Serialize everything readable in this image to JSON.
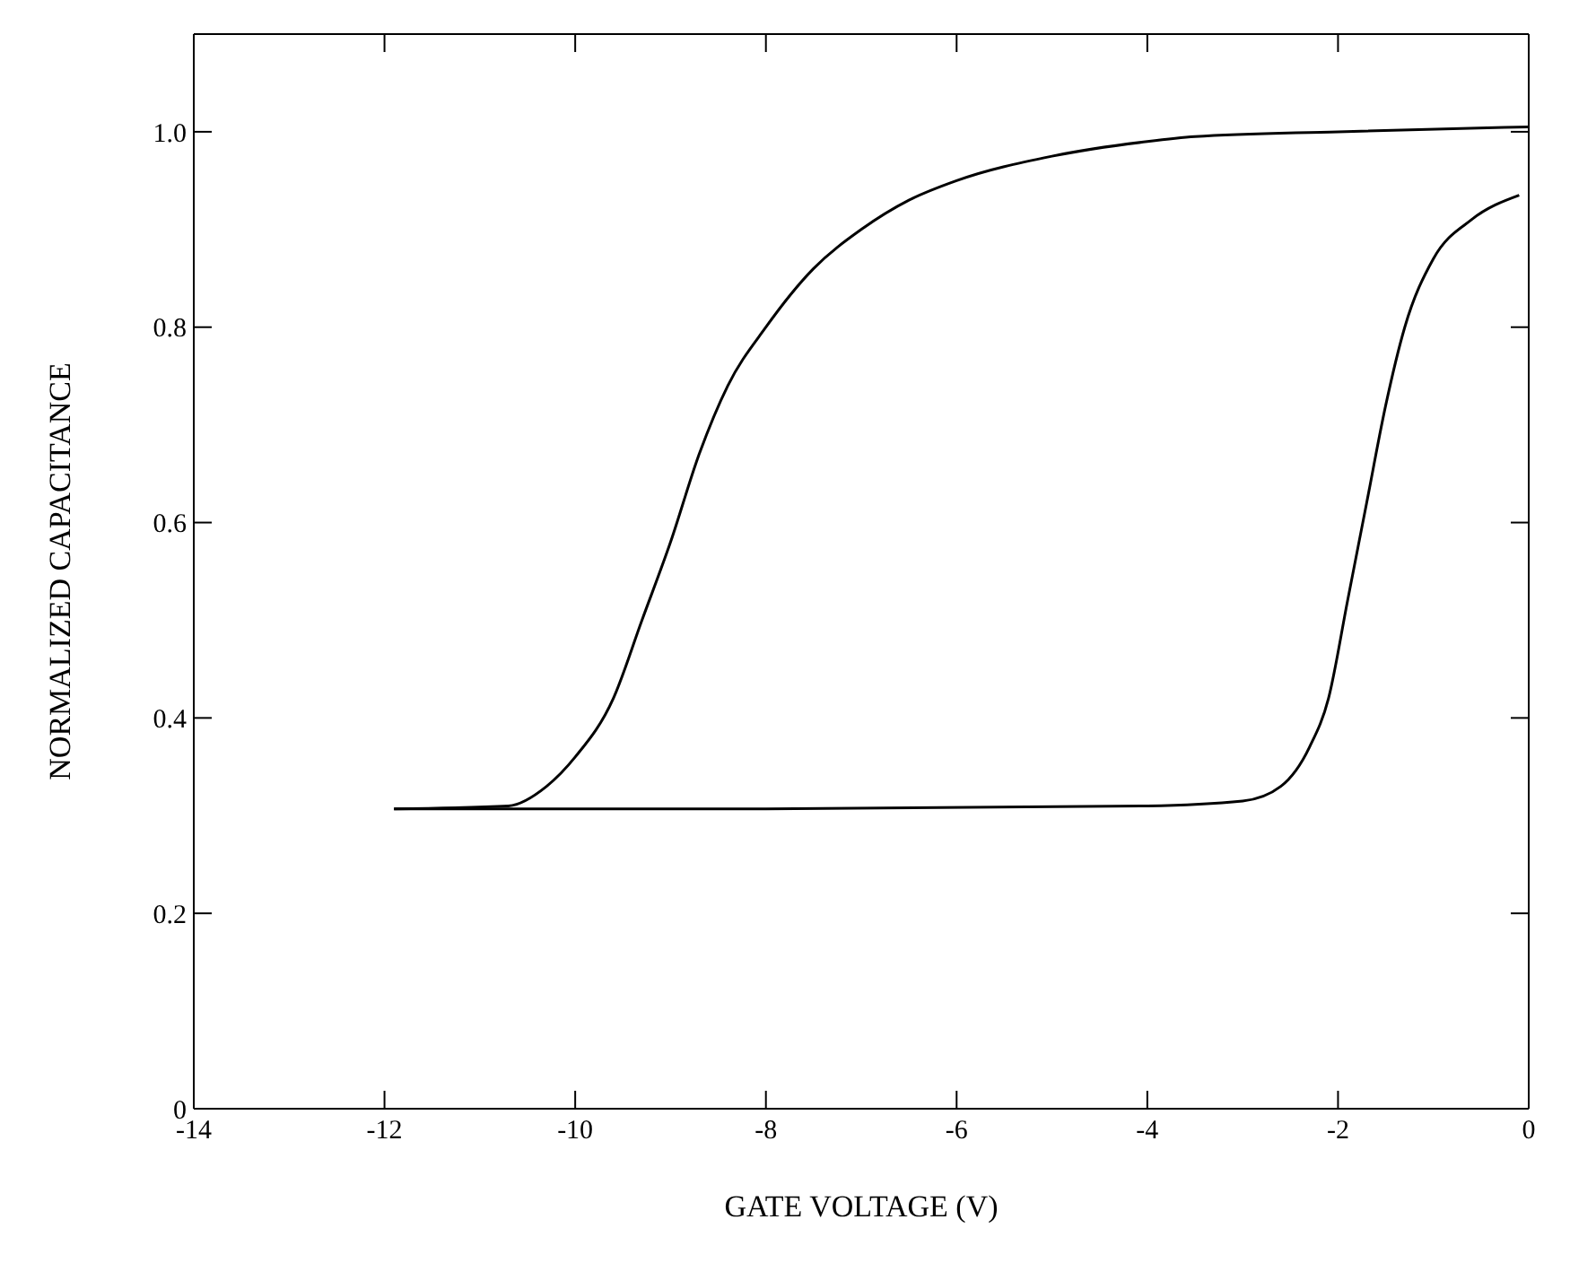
{
  "chart_data": {
    "type": "line",
    "xlabel": "GATE VOLTAGE (V)",
    "ylabel": "NORMALIZED CAPACITANCE",
    "xlim": [
      -14,
      0
    ],
    "xticks": [
      -14,
      -12,
      -10,
      -8,
      -6,
      -4,
      -2,
      0
    ],
    "ylim": [
      0,
      1.1
    ],
    "yticks": [
      0,
      0.2,
      0.4,
      0.6,
      0.8,
      {
        "value": 1,
        "label": "1.0"
      }
    ],
    "marker": "none",
    "line_style": "solid",
    "series": [
      {
        "color": "#000000",
        "x": [
          -11.9,
          -10.7,
          -10.3,
          -10,
          -9.6,
          -9.3,
          -9,
          -8.7,
          -8.4,
          -8,
          -7.5,
          -7,
          -6.5,
          -6,
          -5,
          -4,
          -3.5,
          -2,
          0
        ],
        "values": [
          0.307,
          0.31,
          0.33,
          0.36,
          0.42,
          0.5,
          0.58,
          0.67,
          0.74,
          0.8,
          0.86,
          0.9,
          0.93,
          0.95,
          0.975,
          0.99,
          0.995,
          1.0,
          1.005
        ]
      },
      {
        "color": "#000000",
        "x": [
          -11.9,
          -8,
          -4,
          -3,
          -2.6,
          -2.3,
          -2.1,
          -1.9,
          -1.7,
          -1.5,
          -1.3,
          -1,
          -0.6,
          -0.1
        ],
        "values": [
          0.307,
          0.307,
          0.31,
          0.315,
          0.33,
          0.37,
          0.42,
          0.52,
          0.62,
          0.72,
          0.8,
          0.87,
          0.91,
          0.935
        ]
      }
    ]
  }
}
